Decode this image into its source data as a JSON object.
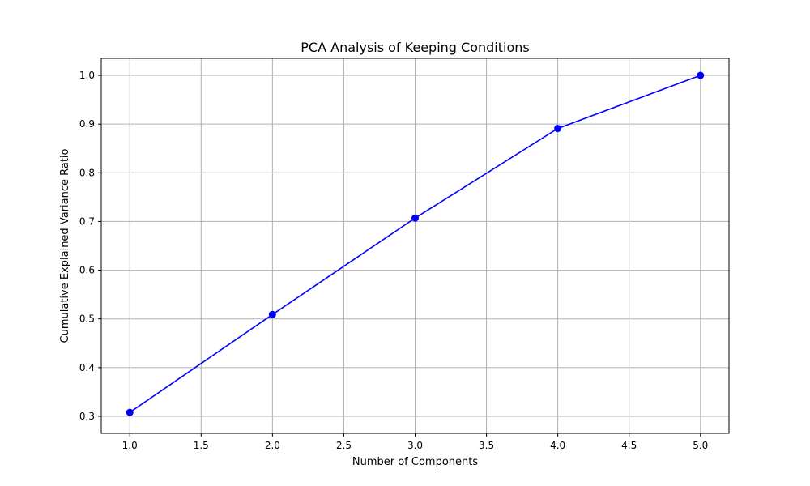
{
  "chart_data": {
    "type": "line",
    "title": "PCA Analysis of Keeping Conditions",
    "xlabel": "Number of Components",
    "ylabel": "Cumulative Explained Variance Ratio",
    "xlim": [
      0.8,
      5.2
    ],
    "ylim": [
      0.265,
      1.035
    ],
    "xticks": [
      1.0,
      1.5,
      2.0,
      2.5,
      3.0,
      3.5,
      4.0,
      4.5,
      5.0
    ],
    "xtick_labels": [
      "1.0",
      "1.5",
      "2.0",
      "2.5",
      "3.0",
      "3.5",
      "4.0",
      "4.5",
      "5.0"
    ],
    "yticks": [
      0.3,
      0.4,
      0.5,
      0.6,
      0.7,
      0.8,
      0.9,
      1.0
    ],
    "ytick_labels": [
      "0.3",
      "0.4",
      "0.5",
      "0.6",
      "0.7",
      "0.8",
      "0.9",
      "1.0"
    ],
    "grid": true,
    "series": [
      {
        "x": [
          1,
          2,
          3,
          4,
          5
        ],
        "values": [
          0.308,
          0.509,
          0.707,
          0.891,
          1.0
        ],
        "color": "#0000ff",
        "marker": "circle"
      }
    ]
  }
}
